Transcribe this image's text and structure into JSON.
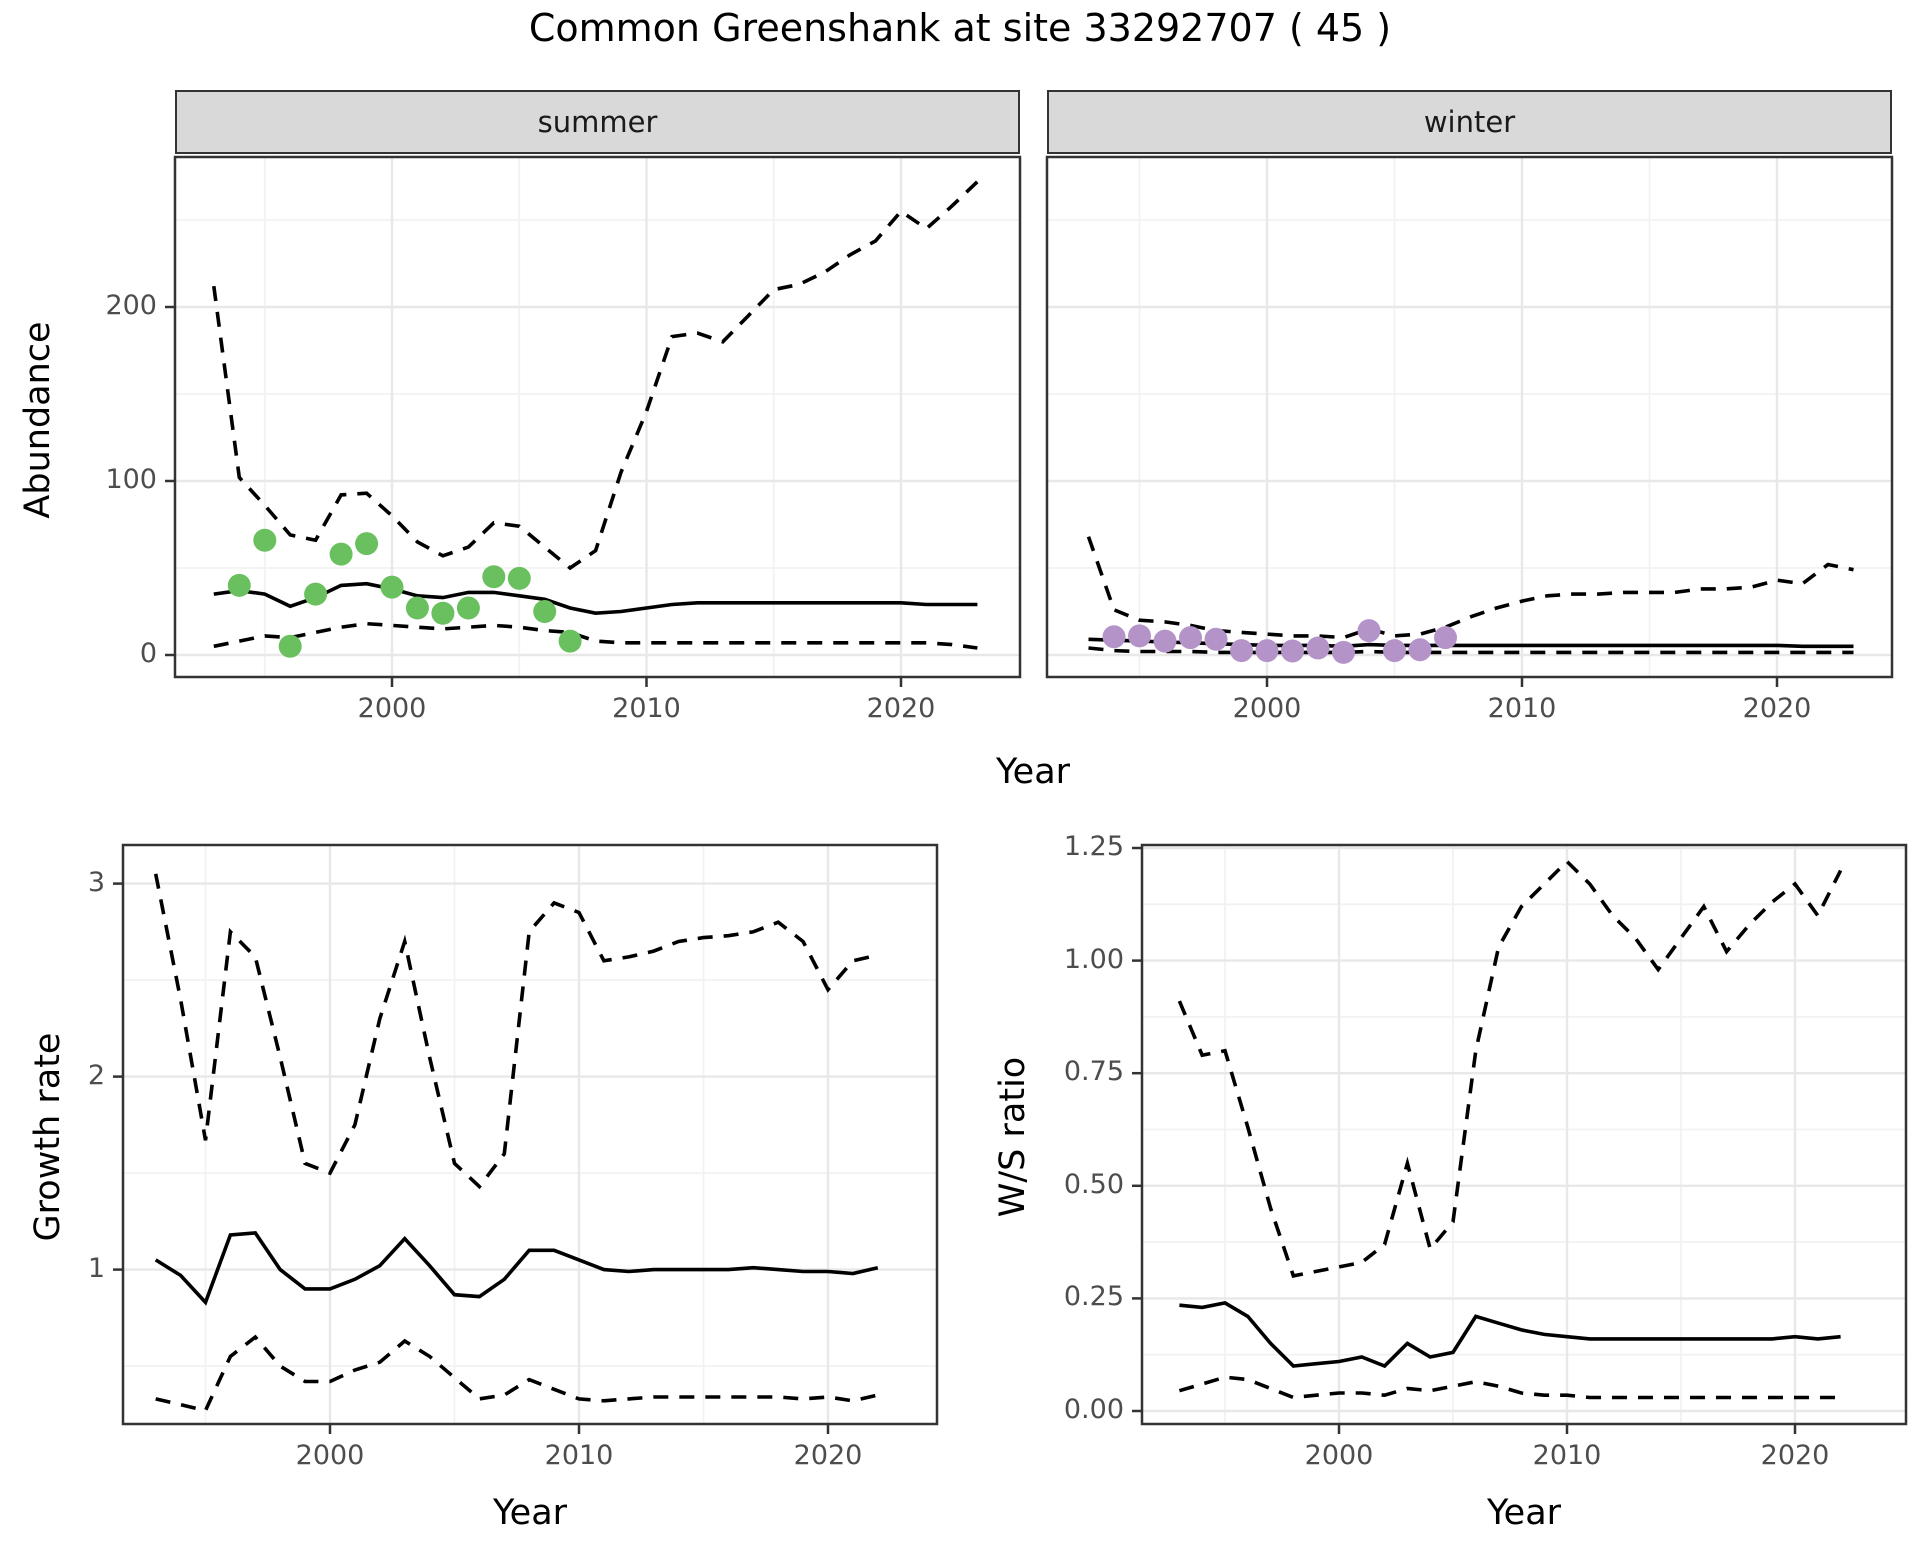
{
  "title": "Common Greenshank at site 33292707 ( 45 )",
  "facets": {
    "summer_label": "summer",
    "winter_label": "winter"
  },
  "axis_labels": {
    "abundance": "Abundance",
    "growth_rate": "Growth rate",
    "ws_ratio": "W/S ratio",
    "year_top": "Year",
    "year_bottom_left": "Year",
    "year_bottom_right": "Year"
  },
  "colors": {
    "summer_points": "#6abf5e",
    "winter_points": "#b493c8",
    "line": "#000000",
    "strip_bg": "#d9d9d9",
    "grid_major": "#e8e8e8",
    "grid_minor": "#f2f2f2",
    "panel_border": "#333333",
    "tick_text": "#4d4d4d"
  },
  "chart_data": [
    {
      "id": "abundance-summer",
      "type": "line",
      "facet": "summer",
      "xlabel": "Year",
      "ylabel": "Abundance",
      "xlim": [
        1991.5,
        2024.7
      ],
      "ylim": [
        -12,
        286
      ],
      "grid": true,
      "legend": "none",
      "x_ticks": [
        2000,
        2010,
        2020
      ],
      "x_tick_labels": [
        "2000",
        "2010",
        "2020"
      ],
      "y_ticks": [
        0,
        100,
        200
      ],
      "y_tick_labels": [
        "0",
        "100",
        "200"
      ],
      "x": [
        1993,
        1994,
        1995,
        1996,
        1997,
        1998,
        1999,
        2000,
        2001,
        2002,
        2003,
        2004,
        2005,
        2006,
        2007,
        2008,
        2009,
        2010,
        2011,
        2012,
        2013,
        2014,
        2015,
        2016,
        2017,
        2018,
        2019,
        2020,
        2021,
        2022,
        2023
      ],
      "series": [
        {
          "name": "median",
          "style": "solid",
          "values": [
            35,
            37,
            35,
            28,
            33,
            40,
            41,
            38,
            34,
            33,
            36,
            36,
            34,
            32,
            27,
            24,
            25,
            27,
            29,
            30,
            30,
            30,
            30,
            30,
            30,
            30,
            30,
            30,
            29,
            29,
            29
          ]
        },
        {
          "name": "upper-ci",
          "style": "dashed",
          "values": [
            212,
            102,
            86,
            69,
            66,
            92,
            93,
            80,
            65,
            57,
            62,
            76,
            74,
            62,
            50,
            60,
            105,
            140,
            183,
            185,
            180,
            195,
            210,
            213,
            220,
            230,
            238,
            255,
            245,
            258,
            272
          ]
        },
        {
          "name": "lower-ci",
          "style": "dashed",
          "values": [
            5,
            8,
            11,
            10,
            13,
            16,
            18,
            17,
            16,
            15,
            16,
            17,
            16,
            14,
            13,
            8,
            7,
            7,
            7,
            7,
            7,
            7,
            7,
            7,
            7,
            7,
            7,
            7,
            7,
            6,
            4
          ]
        }
      ],
      "points": {
        "name": "observed-summer",
        "color": "#6abf5e",
        "data": [
          [
            1994,
            40
          ],
          [
            1995,
            66
          ],
          [
            1996,
            5
          ],
          [
            1997,
            35
          ],
          [
            1998,
            58
          ],
          [
            1999,
            64
          ],
          [
            2000,
            39
          ],
          [
            2001,
            27
          ],
          [
            2002,
            24
          ],
          [
            2003,
            27
          ],
          [
            2004,
            45
          ],
          [
            2005,
            44
          ],
          [
            2006,
            25
          ],
          [
            2007,
            8
          ]
        ]
      }
    },
    {
      "id": "abundance-winter",
      "type": "line",
      "facet": "winter",
      "xlabel": "Year",
      "ylabel": "Abundance",
      "xlim": [
        1991.4,
        2024.5
      ],
      "ylim": [
        -12,
        286
      ],
      "grid": true,
      "legend": "none",
      "x_ticks": [
        2000,
        2010,
        2020
      ],
      "x_tick_labels": [
        "2000",
        "2010",
        "2020"
      ],
      "y_ticks": [
        0,
        100,
        200
      ],
      "y_tick_labels": [],
      "x": [
        1993,
        1994,
        1995,
        1996,
        1997,
        1998,
        1999,
        2000,
        2001,
        2002,
        2003,
        2004,
        2005,
        2006,
        2007,
        2008,
        2009,
        2010,
        2011,
        2012,
        2013,
        2014,
        2015,
        2016,
        2017,
        2018,
        2019,
        2020,
        2021,
        2022,
        2023
      ],
      "series": [
        {
          "name": "median",
          "style": "solid",
          "values": [
            9,
            8.5,
            8,
            7.5,
            7,
            6.5,
            6,
            5.5,
            5.5,
            5.5,
            5,
            6,
            5.5,
            5.5,
            5.5,
            5.5,
            5.5,
            5.5,
            5.5,
            5.5,
            5.5,
            5.5,
            5.5,
            5.5,
            5.5,
            5.5,
            5.5,
            5.5,
            5,
            5,
            5
          ]
        },
        {
          "name": "upper-ci",
          "style": "dashed",
          "values": [
            68,
            26,
            20,
            19,
            17,
            14,
            13,
            12,
            11,
            11,
            10,
            15,
            11,
            12,
            16,
            22,
            27,
            31,
            34,
            35,
            35,
            36,
            36,
            36,
            38,
            38,
            39,
            43,
            41,
            52,
            49
          ]
        },
        {
          "name": "lower-ci",
          "style": "dashed",
          "values": [
            4,
            2.5,
            2,
            2,
            2,
            1.5,
            1.5,
            1.5,
            1.5,
            1.5,
            1.5,
            2,
            1.5,
            1.5,
            1.5,
            1.5,
            1.5,
            1.5,
            1.5,
            1.5,
            1.5,
            1.5,
            1.5,
            1.5,
            1.5,
            1.5,
            1.5,
            1.5,
            1.5,
            1.5,
            1.5
          ]
        }
      ],
      "points": {
        "name": "observed-winter",
        "color": "#b493c8",
        "data": [
          [
            1994,
            10.5
          ],
          [
            1995,
            11
          ],
          [
            1996,
            8
          ],
          [
            1997,
            10
          ],
          [
            1998,
            9
          ],
          [
            1999,
            2.5
          ],
          [
            2000,
            2.5
          ],
          [
            2001,
            2.3
          ],
          [
            2002,
            4
          ],
          [
            2003,
            1.5
          ],
          [
            2004,
            14
          ],
          [
            2005,
            2.5
          ],
          [
            2006,
            3
          ],
          [
            2007,
            10
          ]
        ]
      }
    },
    {
      "id": "growth-rate",
      "type": "line",
      "facet": null,
      "xlabel": "Year",
      "ylabel": "Growth rate",
      "xlim": [
        1991.7,
        2024.4
      ],
      "ylim": [
        0.2,
        3.2
      ],
      "grid": true,
      "legend": "none",
      "x_ticks": [
        2000,
        2010,
        2020
      ],
      "x_tick_labels": [
        "2000",
        "2010",
        "2020"
      ],
      "y_ticks": [
        1,
        2,
        3
      ],
      "y_tick_labels": [
        "1",
        "2",
        "3"
      ],
      "x": [
        1993,
        1994,
        1995,
        1996,
        1997,
        1998,
        1999,
        2000,
        2001,
        2002,
        2003,
        2004,
        2005,
        2006,
        2007,
        2008,
        2009,
        2010,
        2011,
        2012,
        2013,
        2014,
        2015,
        2016,
        2017,
        2018,
        2019,
        2020,
        2021,
        2022
      ],
      "series": [
        {
          "name": "median",
          "style": "solid",
          "values": [
            1.05,
            0.97,
            0.83,
            1.18,
            1.19,
            1.0,
            0.9,
            0.9,
            0.95,
            1.02,
            1.16,
            1.02,
            0.87,
            0.86,
            0.95,
            1.1,
            1.1,
            1.05,
            1.0,
            0.99,
            1.0,
            1.0,
            1.0,
            1.0,
            1.01,
            1.0,
            0.99,
            0.99,
            0.98,
            1.01
          ]
        },
        {
          "name": "upper-ci",
          "style": "dashed",
          "values": [
            3.05,
            2.4,
            1.67,
            2.75,
            2.62,
            2.1,
            1.55,
            1.5,
            1.75,
            2.3,
            2.7,
            2.1,
            1.55,
            1.43,
            1.6,
            2.75,
            2.9,
            2.85,
            2.6,
            2.62,
            2.65,
            2.7,
            2.72,
            2.73,
            2.75,
            2.8,
            2.7,
            2.45,
            2.6,
            2.63
          ]
        },
        {
          "name": "lower-ci",
          "style": "dashed",
          "values": [
            0.33,
            0.3,
            0.27,
            0.55,
            0.65,
            0.5,
            0.42,
            0.42,
            0.48,
            0.52,
            0.63,
            0.55,
            0.44,
            0.33,
            0.35,
            0.43,
            0.38,
            0.33,
            0.32,
            0.33,
            0.34,
            0.34,
            0.34,
            0.34,
            0.34,
            0.34,
            0.33,
            0.34,
            0.32,
            0.35
          ]
        }
      ],
      "points": null
    },
    {
      "id": "ws-ratio",
      "type": "line",
      "facet": null,
      "xlabel": "Year",
      "ylabel": "W/S ratio",
      "xlim": [
        1991.4,
        2024.9
      ],
      "ylim": [
        -0.03,
        1.26
      ],
      "grid": true,
      "legend": "none",
      "x_ticks": [
        2000,
        2010,
        2020
      ],
      "x_tick_labels": [
        "2000",
        "2010",
        "2020"
      ],
      "y_ticks": [
        0,
        0.25,
        0.5,
        0.75,
        1,
        1.25
      ],
      "y_tick_labels": [
        "0.00",
        "0.25",
        "0.50",
        "0.75",
        "1.00",
        "1.25"
      ],
      "x": [
        1993,
        1994,
        1995,
        1996,
        1997,
        1998,
        1999,
        2000,
        2001,
        2002,
        2003,
        2004,
        2005,
        2006,
        2007,
        2008,
        2009,
        2010,
        2011,
        2012,
        2013,
        2014,
        2015,
        2016,
        2017,
        2018,
        2019,
        2020,
        2021,
        2022
      ],
      "series": [
        {
          "name": "median",
          "style": "solid",
          "values": [
            0.235,
            0.23,
            0.24,
            0.21,
            0.15,
            0.1,
            0.105,
            0.11,
            0.12,
            0.1,
            0.15,
            0.12,
            0.13,
            0.21,
            0.195,
            0.18,
            0.17,
            0.165,
            0.16,
            0.16,
            0.16,
            0.16,
            0.16,
            0.16,
            0.16,
            0.16,
            0.16,
            0.165,
            0.16,
            0.165
          ]
        },
        {
          "name": "upper-ci",
          "style": "dashed",
          "values": [
            0.91,
            0.79,
            0.8,
            0.63,
            0.45,
            0.3,
            0.31,
            0.32,
            0.33,
            0.37,
            0.55,
            0.36,
            0.42,
            0.8,
            1.03,
            1.12,
            1.17,
            1.22,
            1.17,
            1.1,
            1.05,
            0.98,
            1.05,
            1.12,
            1.02,
            1.08,
            1.13,
            1.17,
            1.1,
            1.2
          ]
        },
        {
          "name": "lower-ci",
          "style": "dashed",
          "values": [
            0.045,
            0.06,
            0.075,
            0.07,
            0.05,
            0.03,
            0.035,
            0.04,
            0.04,
            0.035,
            0.05,
            0.045,
            0.055,
            0.065,
            0.055,
            0.04,
            0.035,
            0.035,
            0.03,
            0.03,
            0.03,
            0.03,
            0.03,
            0.03,
            0.03,
            0.03,
            0.03,
            0.03,
            0.03,
            0.03
          ]
        }
      ],
      "points": null
    }
  ]
}
